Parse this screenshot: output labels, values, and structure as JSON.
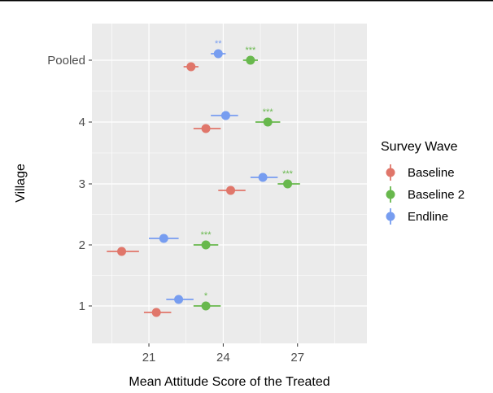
{
  "chart_data": {
    "type": "dot-with-errorbars",
    "title": "",
    "xlabel": "Mean Attitude Score of the Treated",
    "ylabel": "Village",
    "xlim": [
      18.7,
      29.8
    ],
    "x_ticks": [
      21,
      24,
      27
    ],
    "categories": [
      "1",
      "2",
      "3",
      "4",
      "Pooled"
    ],
    "grid": true,
    "legend_position": "right",
    "legend_title": "Survey Wave",
    "series": [
      {
        "name": "Baseline",
        "color": "#e0766a",
        "points": [
          {
            "category": "1",
            "x": 21.3,
            "lo": 20.8,
            "hi": 21.9,
            "sig": ""
          },
          {
            "category": "2",
            "x": 19.9,
            "lo": 19.3,
            "hi": 20.6,
            "sig": ""
          },
          {
            "category": "3",
            "x": 24.3,
            "lo": 23.8,
            "hi": 24.9,
            "sig": ""
          },
          {
            "category": "4",
            "x": 23.3,
            "lo": 22.8,
            "hi": 23.9,
            "sig": ""
          },
          {
            "category": "Pooled",
            "x": 22.7,
            "lo": 22.4,
            "hi": 23.0,
            "sig": ""
          }
        ]
      },
      {
        "name": "Baseline 2",
        "color": "#68b84d",
        "points": [
          {
            "category": "1",
            "x": 23.3,
            "lo": 22.8,
            "hi": 23.9,
            "sig": "*"
          },
          {
            "category": "2",
            "x": 23.3,
            "lo": 22.8,
            "hi": 23.8,
            "sig": "***"
          },
          {
            "category": "3",
            "x": 26.6,
            "lo": 26.2,
            "hi": 27.1,
            "sig": "***"
          },
          {
            "category": "4",
            "x": 25.8,
            "lo": 25.3,
            "hi": 26.3,
            "sig": "***"
          },
          {
            "category": "Pooled",
            "x": 25.1,
            "lo": 24.8,
            "hi": 25.4,
            "sig": "***"
          }
        ]
      },
      {
        "name": "Endline",
        "color": "#779df0",
        "points": [
          {
            "category": "1",
            "x": 22.2,
            "lo": 21.7,
            "hi": 22.8,
            "sig": ""
          },
          {
            "category": "2",
            "x": 21.6,
            "lo": 21.0,
            "hi": 22.2,
            "sig": ""
          },
          {
            "category": "3",
            "x": 25.6,
            "lo": 25.1,
            "hi": 26.2,
            "sig": ""
          },
          {
            "category": "4",
            "x": 24.1,
            "lo": 23.5,
            "hi": 24.6,
            "sig": ""
          },
          {
            "category": "Pooled",
            "x": 23.8,
            "lo": 23.5,
            "hi": 24.1,
            "sig": "**"
          }
        ]
      }
    ]
  }
}
